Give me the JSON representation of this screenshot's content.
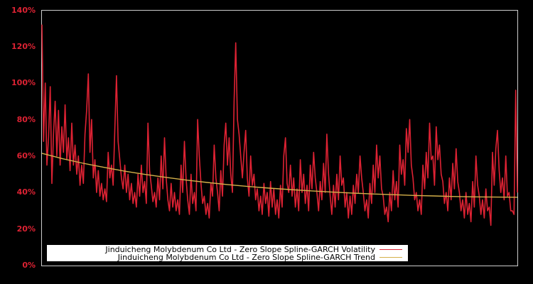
{
  "chart_data": {
    "type": "line",
    "title": "",
    "xlabel": "",
    "ylabel": "",
    "ylim": [
      0,
      140
    ],
    "yticks": [
      "0%",
      "20%",
      "40%",
      "60%",
      "80%",
      "100%",
      "120%",
      "140%"
    ],
    "grid": false,
    "legend_position": "bottom-inside",
    "background": "#000000",
    "axis_color": "#cccccc",
    "tick_color": "#dd2233",
    "series": [
      {
        "name": "Jinduicheng Molybdenum Co Ltd - Zero Slope Spline-GARCH Volatility",
        "color": "#dd2233",
        "values": [
          132,
          68,
          100,
          55,
          70,
          98,
          45,
          72,
          90,
          60,
          85,
          55,
          76,
          62,
          88,
          58,
          70,
          52,
          78,
          55,
          66,
          50,
          60,
          44,
          55,
          45,
          72,
          85,
          105,
          62,
          80,
          48,
          58,
          40,
          52,
          38,
          45,
          36,
          42,
          35,
          62,
          48,
          55,
          44,
          75,
          104,
          68,
          58,
          48,
          42,
          55,
          40,
          50,
          36,
          45,
          34,
          40,
          32,
          50,
          38,
          55,
          40,
          46,
          34,
          78,
          52,
          44,
          35,
          40,
          32,
          48,
          36,
          60,
          42,
          70,
          48,
          36,
          30,
          45,
          32,
          40,
          30,
          36,
          28,
          55,
          40,
          68,
          48,
          36,
          28,
          50,
          34,
          40,
          30,
          80,
          60,
          45,
          34,
          38,
          28,
          34,
          26,
          45,
          38,
          66,
          48,
          40,
          30,
          52,
          38,
          66,
          78,
          55,
          70,
          50,
          40,
          90,
          122,
          80,
          72,
          60,
          48,
          62,
          74,
          48,
          38,
          60,
          44,
          50,
          36,
          42,
          30,
          38,
          28,
          45,
          34,
          40,
          27,
          46,
          32,
          42,
          28,
          36,
          26,
          44,
          32,
          60,
          70,
          45,
          40,
          55,
          38,
          48,
          32,
          42,
          30,
          58,
          40,
          50,
          34,
          44,
          30,
          55,
          42,
          62,
          48,
          40,
          30,
          46,
          36,
          56,
          40,
          72,
          50,
          38,
          28,
          44,
          32,
          50,
          36,
          60,
          44,
          48,
          32,
          40,
          26,
          38,
          28,
          44,
          34,
          50,
          40,
          60,
          48,
          40,
          30,
          36,
          26,
          45,
          34,
          55,
          40,
          66,
          48,
          60,
          42,
          38,
          28,
          32,
          24,
          40,
          30,
          52,
          36,
          46,
          32,
          66,
          50,
          58,
          44,
          75,
          62,
          80,
          55,
          48,
          36,
          40,
          30,
          36,
          28,
          55,
          42,
          62,
          48,
          78,
          58,
          60,
          44,
          76,
          58,
          66,
          50,
          46,
          34,
          40,
          30,
          48,
          36,
          56,
          42,
          64,
          46,
          40,
          30,
          36,
          26,
          40,
          28,
          34,
          24,
          46,
          32,
          60,
          44,
          38,
          28,
          36,
          26,
          42,
          30,
          32,
          22,
          62,
          44,
          64,
          74,
          52,
          40,
          48,
          36,
          60,
          38,
          40,
          30,
          30,
          28,
          96,
          40
        ]
      },
      {
        "name": "Jinduicheng Molybdenum Co Ltd - Zero Slope Spline-GARCH Trend",
        "color": "#d4b04a",
        "values": [
          61.5,
          58.5,
          56.0,
          53.8,
          51.7,
          49.9,
          48.3,
          46.8,
          45.5,
          44.3,
          43.3,
          42.4,
          41.6,
          40.9,
          40.3,
          39.7,
          39.2,
          38.8,
          38.4,
          38.1,
          37.8,
          37.6,
          37.5,
          37.4
        ]
      }
    ]
  },
  "legend": {
    "items": [
      {
        "label": "Jinduicheng Molybdenum Co Ltd - Zero Slope Spline-GARCH Volatility",
        "color": "#dd2233"
      },
      {
        "label": "Jinduicheng Molybdenum Co Ltd - Zero Slope Spline-GARCH Trend",
        "color": "#d4b04a"
      }
    ]
  }
}
